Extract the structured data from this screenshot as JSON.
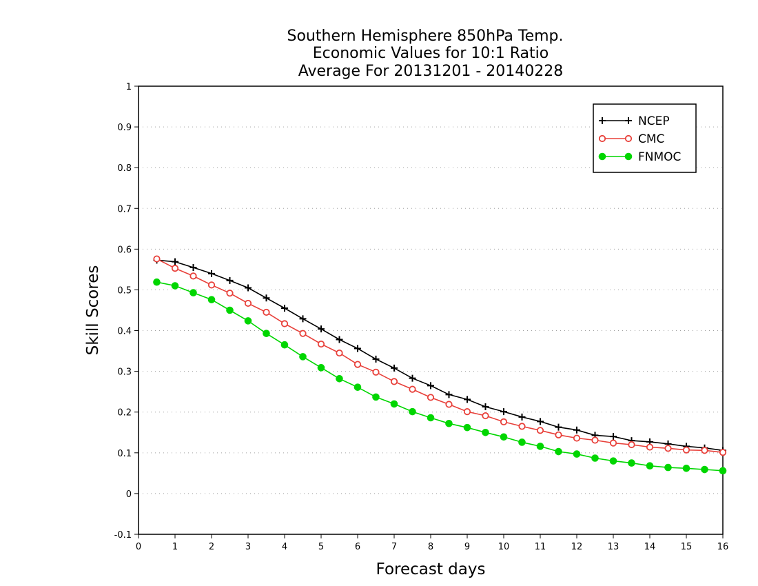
{
  "chart_data": {
    "type": "line",
    "title": [
      "Southern Hemisphere 850hPa Temp.",
      "Economic Values for 10:1 Ratio",
      "Average For 20131201 - 20140228"
    ],
    "xlabel": "Forecast days",
    "ylabel": "Skill Scores",
    "xlim": [
      0,
      16
    ],
    "ylim": [
      -0.1,
      1
    ],
    "xticks": [
      0,
      1,
      2,
      3,
      4,
      5,
      6,
      7,
      8,
      9,
      10,
      11,
      12,
      13,
      14,
      15,
      16
    ],
    "yticks": [
      -0.1,
      0,
      0.1,
      0.2,
      0.3,
      0.4,
      0.5,
      0.6,
      0.7,
      0.8,
      0.9,
      1
    ],
    "ytick_labels": [
      "-0.1",
      "0",
      "0.1",
      "0.2",
      "0.3",
      "0.4",
      "0.5",
      "0.6",
      "0.7",
      "0.8",
      "0.9",
      "1"
    ],
    "grid": true,
    "legend_position": "top-right",
    "x": [
      0.5,
      1,
      1.5,
      2,
      2.5,
      3,
      3.5,
      4,
      4.5,
      5,
      5.5,
      6,
      6.5,
      7,
      7.5,
      8,
      8.5,
      9,
      9.5,
      10,
      10.5,
      11,
      11.5,
      12,
      12.5,
      13,
      13.5,
      14,
      14.5,
      15,
      15.5,
      16
    ],
    "series": [
      {
        "name": "NCEP",
        "color": "#000000",
        "marker": "plus",
        "values": [
          0.573,
          0.569,
          0.555,
          0.54,
          0.523,
          0.505,
          0.48,
          0.455,
          0.429,
          0.404,
          0.378,
          0.356,
          0.33,
          0.308,
          0.283,
          0.265,
          0.243,
          0.231,
          0.213,
          0.201,
          0.188,
          0.177,
          0.163,
          0.156,
          0.143,
          0.14,
          0.13,
          0.127,
          0.122,
          0.116,
          0.112,
          0.106
        ]
      },
      {
        "name": "CMC",
        "color": "#e8403a",
        "marker": "open-circle",
        "values": [
          0.576,
          0.553,
          0.534,
          0.512,
          0.492,
          0.467,
          0.445,
          0.417,
          0.393,
          0.367,
          0.345,
          0.317,
          0.298,
          0.275,
          0.256,
          0.236,
          0.219,
          0.201,
          0.191,
          0.176,
          0.165,
          0.155,
          0.144,
          0.136,
          0.131,
          0.124,
          0.12,
          0.114,
          0.111,
          0.107,
          0.106,
          0.101
        ]
      },
      {
        "name": "FNMOC",
        "color": "#00d600",
        "marker": "filled-circle",
        "values": [
          0.519,
          0.51,
          0.493,
          0.476,
          0.45,
          0.424,
          0.393,
          0.365,
          0.336,
          0.309,
          0.282,
          0.261,
          0.237,
          0.22,
          0.201,
          0.186,
          0.172,
          0.162,
          0.15,
          0.139,
          0.126,
          0.116,
          0.103,
          0.097,
          0.087,
          0.08,
          0.075,
          0.068,
          0.064,
          0.062,
          0.059,
          0.056
        ]
      }
    ]
  }
}
